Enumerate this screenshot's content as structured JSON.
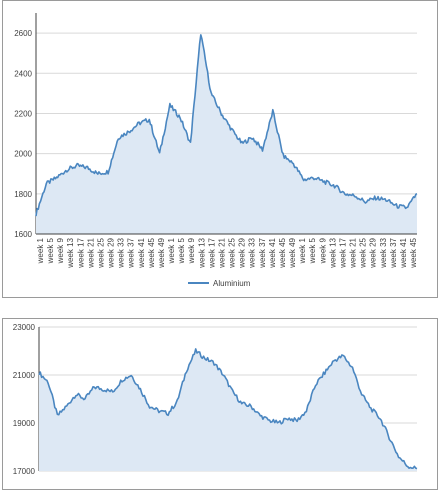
{
  "chart_data": [
    {
      "type": "area",
      "title": "",
      "xlabel": "",
      "ylabel": "",
      "ylim": [
        1600,
        2700
      ],
      "yticks": [
        1600,
        1800,
        2000,
        2200,
        2400,
        2600
      ],
      "grid": true,
      "legend_position": "bottom",
      "line_color": "#4a86c0",
      "fill_color": "#dde8f4",
      "categories": [
        "week 1",
        "week 5",
        "week 9",
        "week 13",
        "week 17",
        "week 21",
        "week 25",
        "week 29",
        "week 33",
        "week 37",
        "week 41",
        "week 45",
        "week 49",
        "week 1",
        "week 5",
        "week 9",
        "week 13",
        "week 17",
        "week 21",
        "week 25",
        "week 29",
        "week 33",
        "week 37",
        "week 41",
        "week 45",
        "week 49",
        "week 1",
        "week 5",
        "week 9",
        "week 13",
        "week 17",
        "week 21",
        "week 25",
        "week 29",
        "week 33",
        "week 37",
        "week 41",
        "week 45"
      ],
      "series": [
        {
          "name": "Aluminium",
          "values": [
            1700,
            1850,
            1880,
            1920,
            1940,
            1930,
            1900,
            1910,
            2080,
            2110,
            2150,
            2170,
            2000,
            2240,
            2180,
            2050,
            2600,
            2300,
            2200,
            2120,
            2050,
            2080,
            2020,
            2210,
            1990,
            1950,
            1870,
            1880,
            1860,
            1840,
            1800,
            1790,
            1760,
            1780,
            1770,
            1740,
            1730,
            1800
          ]
        }
      ]
    },
    {
      "type": "area",
      "title": "",
      "xlabel": "",
      "ylabel": "",
      "ylim": [
        17000,
        23000
      ],
      "yticks": [
        17000,
        19000,
        21000,
        23000
      ],
      "grid": true,
      "line_color": "#4a86c0",
      "fill_color": "#dde8f4",
      "series": [
        {
          "values": [
            21100,
            20700,
            19300,
            19700,
            20200,
            20000,
            20500,
            20400,
            20300,
            20800,
            21000,
            20400,
            19700,
            19500,
            19400,
            19900,
            21200,
            22000,
            21700,
            21500,
            21000,
            20300,
            19800,
            19700,
            19300,
            19100,
            19000,
            19200,
            19100,
            19500,
            20600,
            21100,
            21600,
            21800,
            21300,
            20200,
            19600,
            19200,
            18400,
            17600,
            17200,
            17100
          ]
        }
      ]
    }
  ]
}
